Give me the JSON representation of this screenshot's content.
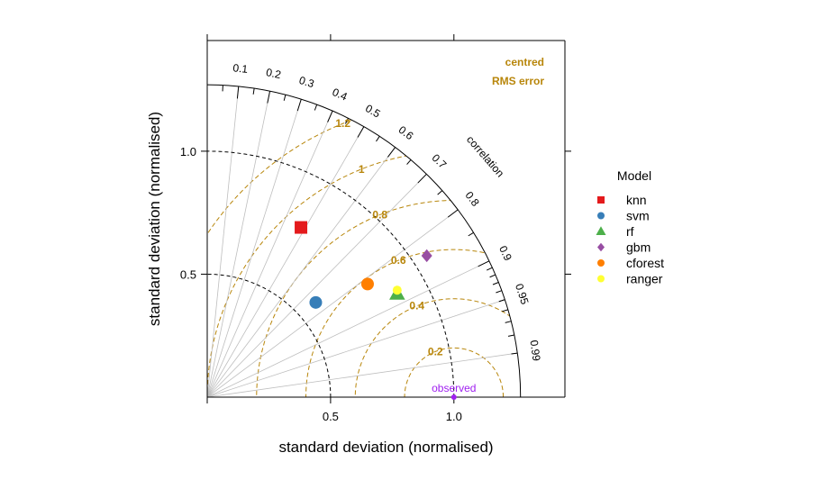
{
  "chart_data": {
    "type": "scatter",
    "subtype": "taylor-diagram",
    "xlabel": "standard deviation (normalised)",
    "ylabel": "standard deviation (normalised)",
    "xlim": [
      0,
      1.45
    ],
    "ylim": [
      0,
      1.45
    ],
    "x_ticks": [
      "0.5",
      "1.0"
    ],
    "x_tick_values": [
      0.5,
      1.0
    ],
    "y_ticks": [
      "0.5",
      "1.0"
    ],
    "y_tick_values": [
      0.5,
      1.0
    ],
    "sd_arc_max": 1.27,
    "correlation_title": "correlation",
    "correlation_ticks": [
      {
        "label": "0.1",
        "value": 0.1
      },
      {
        "label": "0.2",
        "value": 0.2
      },
      {
        "label": "0.3",
        "value": 0.3
      },
      {
        "label": "0.4",
        "value": 0.4
      },
      {
        "label": "0.5",
        "value": 0.5
      },
      {
        "label": "0.6",
        "value": 0.6
      },
      {
        "label": "0.7",
        "value": 0.7
      },
      {
        "label": "0.8",
        "value": 0.8
      },
      {
        "label": "0.9",
        "value": 0.9
      },
      {
        "label": "0.95",
        "value": 0.95
      },
      {
        "label": "0.99",
        "value": 0.99
      }
    ],
    "sd_reference_circles": [
      0.5,
      1.0
    ],
    "rms_title": [
      "centred",
      "RMS error"
    ],
    "rms_color": "#b8860b",
    "rms_contours": [
      {
        "label": "0.2",
        "value": 0.2
      },
      {
        "label": "0.4",
        "value": 0.4
      },
      {
        "label": "0.6",
        "value": 0.6
      },
      {
        "label": "0.8",
        "value": 0.8
      },
      {
        "label": "1",
        "value": 1.0
      },
      {
        "label": "1.2",
        "value": 1.2
      }
    ],
    "observed": {
      "label": "observed",
      "x": 1.0,
      "y": 0.0,
      "color": "#a020f0"
    },
    "legend": {
      "title": "Model",
      "position": "right"
    },
    "series": [
      {
        "name": "knn",
        "x": 0.38,
        "y": 0.69,
        "shape": "square",
        "color": "#e41a1c"
      },
      {
        "name": "svm",
        "x": 0.44,
        "y": 0.385,
        "shape": "circle",
        "color": "#377eb8"
      },
      {
        "name": "rf",
        "x": 0.77,
        "y": 0.42,
        "shape": "triangle",
        "color": "#4daf4a"
      },
      {
        "name": "gbm",
        "x": 0.89,
        "y": 0.575,
        "shape": "diamond",
        "color": "#984ea3"
      },
      {
        "name": "cforest",
        "x": 0.65,
        "y": 0.46,
        "shape": "circle",
        "color": "#ff7f00"
      },
      {
        "name": "ranger",
        "x": 0.77,
        "y": 0.435,
        "shape": "circle",
        "color": "#ffff33"
      }
    ]
  }
}
